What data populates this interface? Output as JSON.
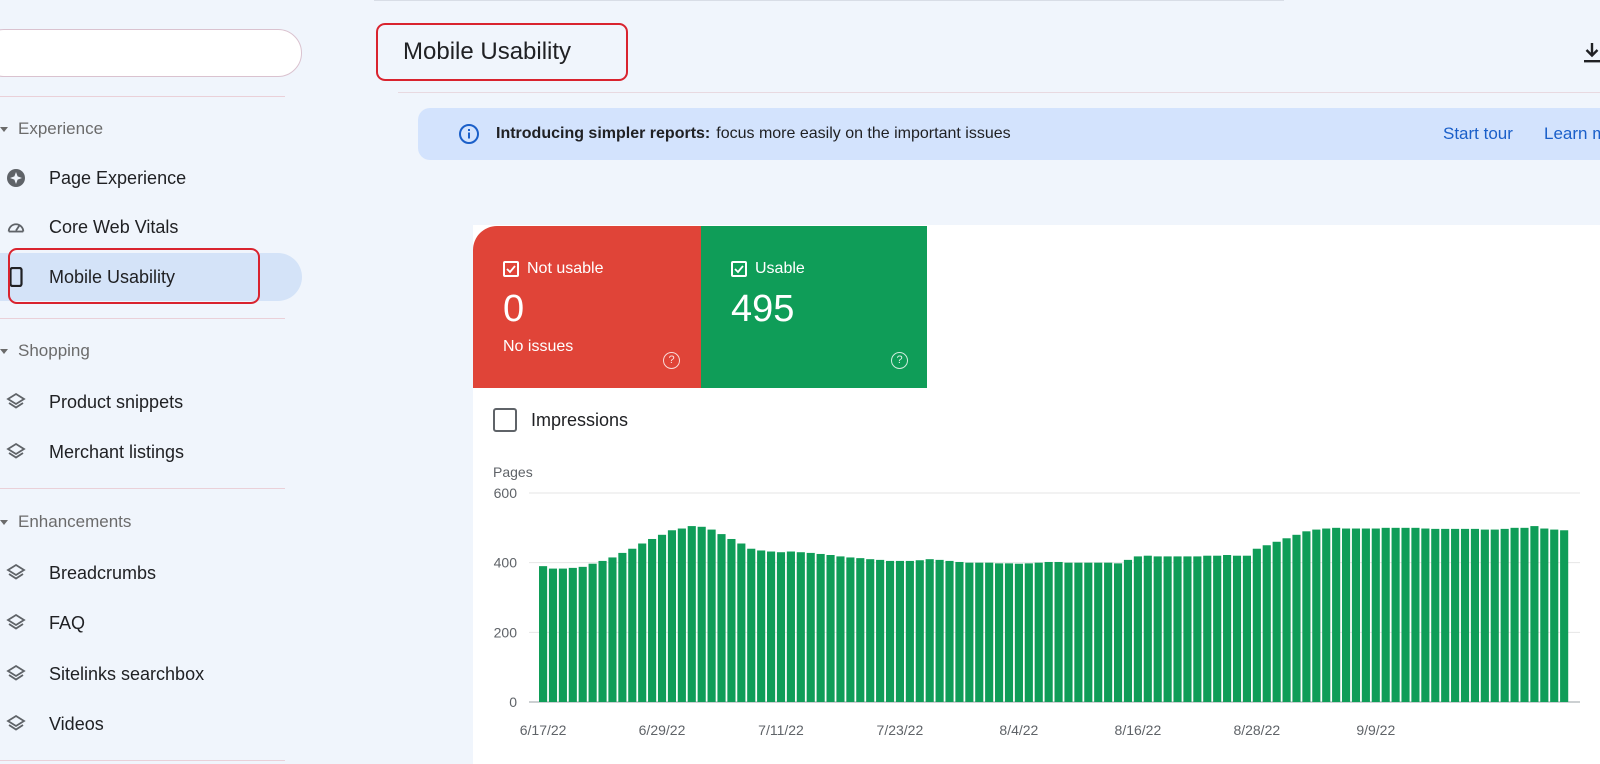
{
  "sidebar": {
    "search": {
      "value": ""
    },
    "sections": [
      {
        "label": "Experience",
        "items": [
          {
            "label": "Page Experience",
            "icon": "star-badge-icon"
          },
          {
            "label": "Core Web Vitals",
            "icon": "speedometer-icon"
          },
          {
            "label": "Mobile Usability",
            "icon": "smartphone-icon",
            "active": true
          }
        ]
      },
      {
        "label": "Shopping",
        "items": [
          {
            "label": "Product snippets",
            "icon": "layers-icon"
          },
          {
            "label": "Merchant listings",
            "icon": "layers-icon"
          }
        ]
      },
      {
        "label": "Enhancements",
        "items": [
          {
            "label": "Breadcrumbs",
            "icon": "layers-icon"
          },
          {
            "label": "FAQ",
            "icon": "layers-icon"
          },
          {
            "label": "Sitelinks searchbox",
            "icon": "layers-icon"
          },
          {
            "label": "Videos",
            "icon": "layers-icon"
          }
        ]
      }
    ]
  },
  "header": {
    "title": "Mobile Usability",
    "download_icon": "download-icon"
  },
  "banner": {
    "bold": "Introducing simpler reports:",
    "text": "focus more easily on the important issues",
    "start_tour": "Start tour",
    "learn_more": "Learn m"
  },
  "tiles": {
    "not_usable": {
      "label": "Not usable",
      "value": "0",
      "sub": "No issues",
      "color": "#e04438"
    },
    "usable": {
      "label": "Usable",
      "value": "495",
      "color": "#0f9d58"
    }
  },
  "impressions": {
    "label": "Impressions"
  },
  "colors": {
    "accent": "#1a5fc9",
    "highlight": "#d9232e",
    "bar": "#0f9d58"
  },
  "chart_data": {
    "type": "bar",
    "ylabel": "Pages",
    "ylim": [
      0,
      600
    ],
    "yticks": [
      0,
      200,
      400,
      600
    ],
    "xtick_labels": [
      "6/17/22",
      "6/29/22",
      "7/11/22",
      "7/23/22",
      "8/4/22",
      "8/16/22",
      "8/28/22",
      "9/9/22"
    ],
    "start_date": "6/17/22",
    "grid": true,
    "series": [
      {
        "values": [
          390,
          383,
          383,
          385,
          388,
          397,
          405,
          415,
          428,
          440,
          455,
          468,
          480,
          493,
          498,
          505,
          503,
          495,
          482,
          468,
          455,
          440,
          435,
          432,
          430,
          432,
          430,
          428,
          425,
          422,
          418,
          415,
          413,
          410,
          408,
          405,
          405,
          405,
          407,
          410,
          408,
          405,
          402,
          400,
          400,
          400,
          398,
          398,
          397,
          398,
          400,
          402,
          402,
          400,
          400,
          400,
          400,
          400,
          398,
          408,
          418,
          420,
          418,
          418,
          418,
          418,
          418,
          420,
          420,
          422,
          420,
          420,
          440,
          450,
          460,
          470,
          480,
          490,
          495,
          498,
          500,
          498,
          498,
          498,
          498,
          500,
          500,
          500,
          500,
          498,
          497,
          497,
          497,
          497,
          497,
          495,
          495,
          497,
          500,
          500,
          505,
          498,
          495,
          493
        ]
      }
    ]
  }
}
